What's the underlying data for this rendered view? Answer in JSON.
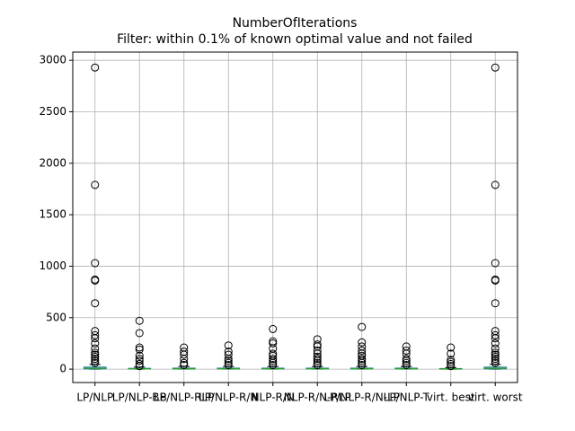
{
  "chart_data": {
    "type": "box",
    "title": "NumberOfIterations",
    "subtitle": "Filter: within 0.1% of known optimal value and not failed",
    "categories": [
      "LP/NLP",
      "LP/NLP-BB",
      "LP/NLP-RLP",
      "LP/NLP-R/N",
      "NLP-R/N",
      "NLP-R/N-RLP",
      "LP/NLP-R/N-LP",
      "LP/NLP-T",
      "virt. best",
      "virt. worst"
    ],
    "boxes": [
      {
        "whislo": 0,
        "q1": 2,
        "med": 8,
        "q3": 20,
        "whishi": 45,
        "fliers": [
          60,
          80,
          100,
          120,
          140,
          160,
          200,
          250,
          300,
          330,
          370,
          640,
          860,
          870,
          1030,
          1790,
          2930
        ]
      },
      {
        "whislo": 0,
        "q1": 1,
        "med": 3,
        "q3": 8,
        "whishi": 20,
        "fliers": [
          30,
          50,
          80,
          100,
          130,
          190,
          210,
          350,
          470
        ]
      },
      {
        "whislo": 0,
        "q1": 1,
        "med": 4,
        "q3": 10,
        "whishi": 25,
        "fliers": [
          40,
          60,
          100,
          140,
          170,
          210
        ]
      },
      {
        "whislo": 0,
        "q1": 1,
        "med": 4,
        "q3": 10,
        "whishi": 25,
        "fliers": [
          40,
          60,
          80,
          100,
          140,
          170,
          230
        ]
      },
      {
        "whislo": 0,
        "q1": 1,
        "med": 4,
        "q3": 10,
        "whishi": 25,
        "fliers": [
          40,
          60,
          80,
          100,
          130,
          150,
          200,
          250,
          270,
          390
        ]
      },
      {
        "whislo": 0,
        "q1": 1,
        "med": 4,
        "q3": 10,
        "whishi": 25,
        "fliers": [
          40,
          60,
          80,
          100,
          120,
          150,
          180,
          220,
          240,
          290
        ]
      },
      {
        "whislo": 0,
        "q1": 1,
        "med": 4,
        "q3": 10,
        "whishi": 25,
        "fliers": [
          40,
          60,
          80,
          100,
          130,
          150,
          180,
          220,
          260,
          410
        ]
      },
      {
        "whislo": 0,
        "q1": 1,
        "med": 4,
        "q3": 10,
        "whishi": 25,
        "fliers": [
          40,
          60,
          80,
          100,
          150,
          180,
          220
        ]
      },
      {
        "whislo": 0,
        "q1": 1,
        "med": 2,
        "q3": 6,
        "whishi": 15,
        "fliers": [
          30,
          50,
          70,
          90,
          150,
          210
        ]
      },
      {
        "whislo": 0,
        "q1": 2,
        "med": 8,
        "q3": 20,
        "whishi": 45,
        "fliers": [
          60,
          80,
          100,
          120,
          140,
          160,
          200,
          250,
          300,
          330,
          370,
          640,
          860,
          870,
          1030,
          1790,
          2930
        ]
      }
    ],
    "box_color": "#1f77b4",
    "median_color": "#2ca02c",
    "ylim": [
      -130,
      3080
    ],
    "yticks": [
      0,
      500,
      1000,
      1500,
      2000,
      2500,
      3000
    ],
    "grid": true
  }
}
